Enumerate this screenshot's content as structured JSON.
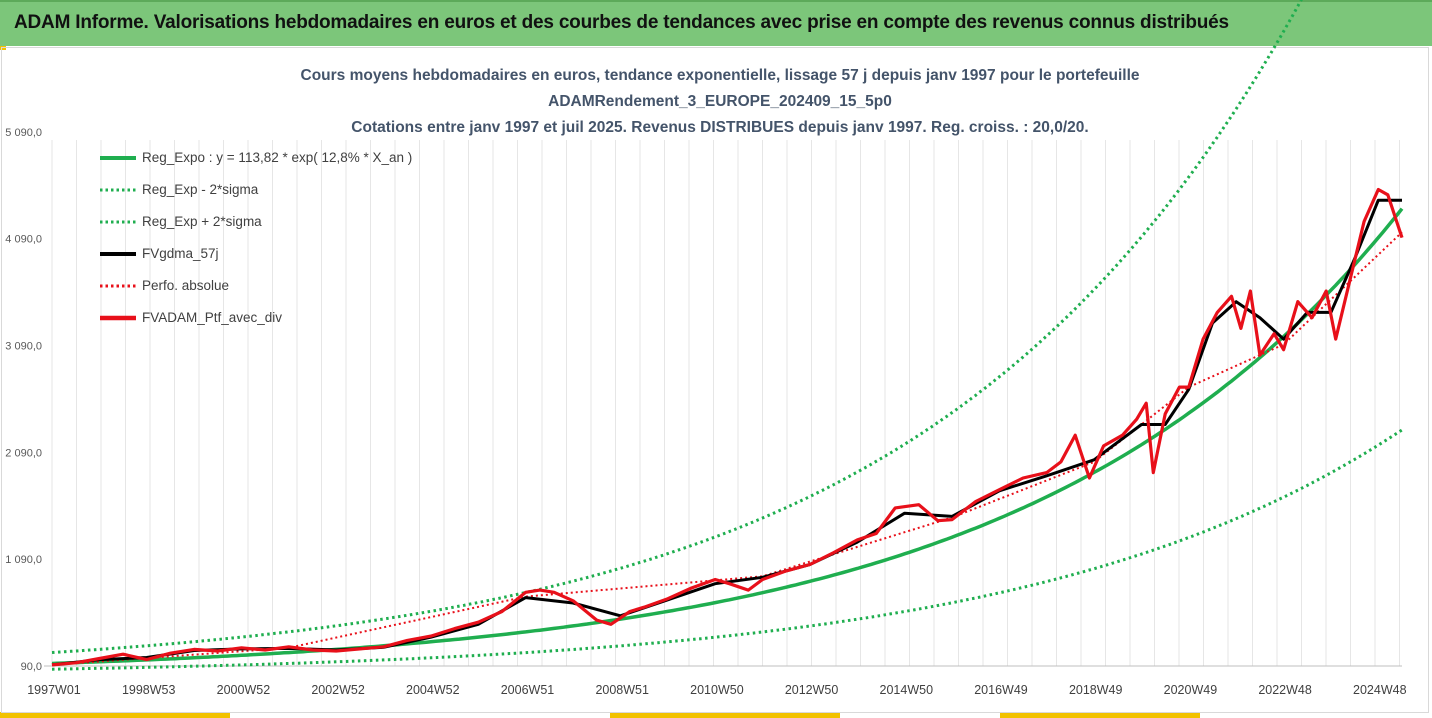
{
  "header": {
    "title": "ADAM Informe. Valorisations hebdomadaires en euros et des courbes de tendances avec prise en compte des revenus connus distribués"
  },
  "colors": {
    "banner": "#7cc67a",
    "accent": "#f2c200",
    "trend": "#1fae4f",
    "sma": "#000000",
    "portfolio": "#e8101a",
    "title_text": "#44546a"
  },
  "chart_data": {
    "type": "line",
    "title_lines": [
      "Cours moyens hebdomadaires  en euros, tendance exponentielle, lissage 57 j depuis janv 1997 pour le portefeuille",
      "ADAMRendement_3_EUROPE_202409_15_5p0",
      "Cotations  entre janv 1997 et juil 2025. Revenus DISTRIBUES depuis janv 1997. Reg. croiss. : 20,0/20."
    ],
    "x_ticks": [
      "1997W01",
      "1998W53",
      "2000W52",
      "2002W52",
      "2004W52",
      "2006W51",
      "2008W51",
      "2010W50",
      "2012W50",
      "2014W50",
      "2016W49",
      "2018W49",
      "2020W49",
      "2022W48",
      "2024W48"
    ],
    "y_ticks": [
      "90,0",
      "1 090,0",
      "2 090,0",
      "3 090,0",
      "4 090,0",
      "5 090,0"
    ],
    "y_range": [
      90,
      5790
    ],
    "x_range_years": [
      1997.0,
      2025.5
    ],
    "grid": {
      "vertical": true,
      "horizontal": false
    },
    "legend_position": "top-left",
    "regression": {
      "a": 113.82,
      "rate_pct": 12.8
    },
    "series": [
      {
        "name": "Reg_Expo : y = 113,82 * exp( 12,8% *  X_an )",
        "style": "solid",
        "color": "#1fae4f",
        "role": "trend"
      },
      {
        "name": "Reg_Exp - 2*sigma",
        "style": "dotted",
        "color": "#1fae4f",
        "role": "lower"
      },
      {
        "name": "Reg_Exp + 2*sigma",
        "style": "dotted",
        "color": "#1fae4f",
        "role": "upper"
      },
      {
        "name": "FVgdma_57j",
        "style": "solid",
        "color": "#000000",
        "role": "sma"
      },
      {
        "name": "Perfo. absolue",
        "style": "dotted",
        "color": "#e8101a",
        "role": "perf"
      },
      {
        "name": "FVADAM_Ptf_avec_div",
        "style": "solid",
        "color": "#e8101a",
        "role": "portfolio"
      }
    ],
    "portfolio_points": {
      "x": [
        1997.0,
        1997.5,
        1998.0,
        1998.5,
        1999.0,
        1999.5,
        2000.0,
        2000.5,
        2001.0,
        2001.5,
        2002.0,
        2002.5,
        2003.0,
        2003.5,
        2004.0,
        2004.5,
        2005.0,
        2005.5,
        2006.0,
        2006.5,
        2007.0,
        2007.3,
        2007.6,
        2008.0,
        2008.5,
        2008.8,
        2009.2,
        2009.5,
        2010.0,
        2010.5,
        2011.0,
        2011.3,
        2011.7,
        2012.0,
        2012.5,
        2013.0,
        2013.5,
        2014.0,
        2014.4,
        2014.8,
        2015.3,
        2015.7,
        2016.0,
        2016.5,
        2017.0,
        2017.5,
        2018.0,
        2018.3,
        2018.6,
        2018.9,
        2019.2,
        2019.6,
        2019.9,
        2020.1,
        2020.25,
        2020.5,
        2020.8,
        2021.0,
        2021.3,
        2021.6,
        2021.9,
        2022.1,
        2022.3,
        2022.5,
        2022.8,
        2023.0,
        2023.3,
        2023.6,
        2023.9,
        2024.1,
        2024.4,
        2024.7,
        2025.0,
        2025.2,
        2025.5
      ],
      "y": [
        100,
        120,
        160,
        200,
        150,
        210,
        245,
        230,
        260,
        240,
        270,
        240,
        230,
        250,
        270,
        330,
        370,
        440,
        500,
        600,
        780,
        800,
        780,
        700,
        520,
        480,
        600,
        640,
        720,
        820,
        900,
        860,
        800,
        900,
        980,
        1040,
        1150,
        1270,
        1330,
        1570,
        1600,
        1450,
        1460,
        1630,
        1740,
        1850,
        1900,
        2000,
        2250,
        1850,
        2150,
        2250,
        2400,
        2550,
        1900,
        2450,
        2700,
        2700,
        3150,
        3400,
        3550,
        3250,
        3600,
        3000,
        3200,
        3050,
        3500,
        3350,
        3600,
        3150,
        3700,
        4250,
        4550,
        4500,
        4100
      ]
    },
    "sma_points": {
      "x": [
        1997.0,
        1998.0,
        1999.0,
        2000.0,
        2001.0,
        2002.0,
        2003.0,
        2004.0,
        2005.0,
        2006.0,
        2007.0,
        2008.0,
        2009.0,
        2010.0,
        2011.0,
        2012.0,
        2013.0,
        2014.0,
        2015.0,
        2016.0,
        2017.0,
        2018.0,
        2019.0,
        2020.0,
        2020.5,
        2021.0,
        2021.5,
        2022.0,
        2022.5,
        2023.0,
        2023.5,
        2024.0,
        2024.5,
        2025.0,
        2025.5
      ],
      "y": [
        100,
        150,
        170,
        235,
        250,
        255,
        240,
        265,
        360,
        480,
        730,
        680,
        560,
        710,
        860,
        920,
        1040,
        1250,
        1520,
        1490,
        1730,
        1870,
        2020,
        2350,
        2350,
        2680,
        3300,
        3500,
        3350,
        3150,
        3400,
        3400,
        3900,
        4450,
        4450
      ]
    },
    "perf_points": {
      "x": [
        1997.0,
        2002.0,
        2007.0,
        2012.0,
        2016.0,
        2019.0,
        2021.0,
        2023.0,
        2025.5
      ],
      "y": [
        100,
        260,
        740,
        930,
        1480,
        2000,
        2700,
        3100,
        4150
      ]
    }
  }
}
